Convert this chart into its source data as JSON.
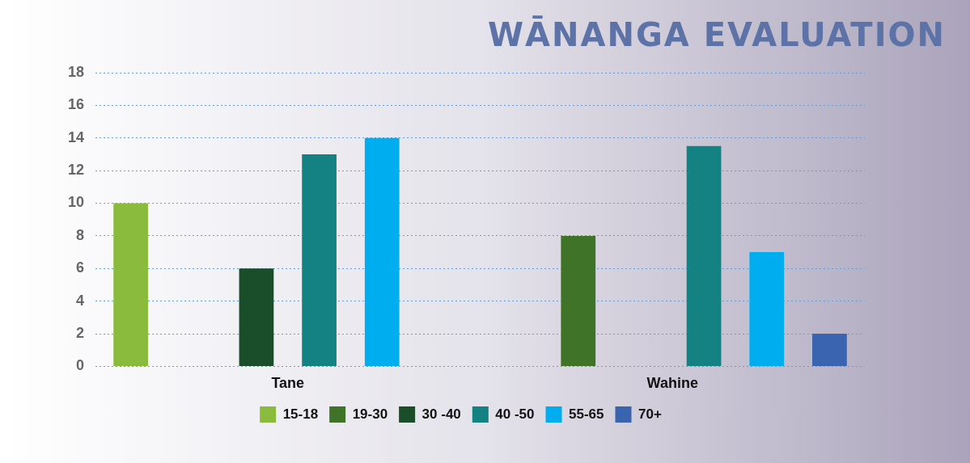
{
  "chart_data": {
    "type": "bar",
    "title": "WĀNANGA EVALUATION",
    "categories": [
      "Tane",
      "Wahine"
    ],
    "series": [
      {
        "name": "15-18",
        "color": "#8bbb3c",
        "values": [
          10,
          0
        ]
      },
      {
        "name": "19-30",
        "color": "#3f7428",
        "values": [
          0,
          8
        ]
      },
      {
        "name": "30 -40",
        "color": "#1a4d2a",
        "values": [
          6,
          0
        ]
      },
      {
        "name": "40 -50",
        "color": "#148282",
        "values": [
          13,
          13.5
        ]
      },
      {
        "name": "55-65",
        "color": "#00aeef",
        "values": [
          14,
          7
        ]
      },
      {
        "name": "70+",
        "color": "#3a63b0",
        "values": [
          0,
          2
        ]
      }
    ],
    "ylim": [
      0,
      18
    ],
    "yticks": [
      0,
      2,
      4,
      6,
      8,
      10,
      12,
      14,
      16,
      18
    ],
    "grid": "y",
    "legend": "bottom"
  }
}
